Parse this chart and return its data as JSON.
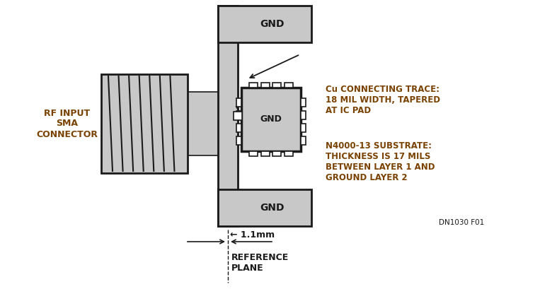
{
  "bg_color": "#ffffff",
  "border_color": "#1a1a1a",
  "fill_gray": "#c8c8c8",
  "fill_white": "#ffffff",
  "text_brown": "#7a4200",
  "text_black": "#1a1a1a",
  "label_rf_input": "RF INPUT\nSMA\nCONNECTOR",
  "label_gnd_top": "GND",
  "label_gnd_bot": "GND",
  "label_gnd_ic": "GND",
  "label_cu_trace": "Cu CONNECTING TRACE:\n18 MIL WIDTH, TAPERED\nAT IC PAD",
  "label_n4000": "N4000-13 SUBSTRATE:\nTHICKNESS IS 17 MILS\nBETWEEN LAYER 1 AND\nGROUND LAYER 2",
  "label_ref_plane": "REFERENCE\nPLANE",
  "label_1p1mm": "← 1.1mm",
  "label_dn": "DN1030 F01",
  "figsize": [
    7.63,
    4.09
  ],
  "dpi": 100
}
